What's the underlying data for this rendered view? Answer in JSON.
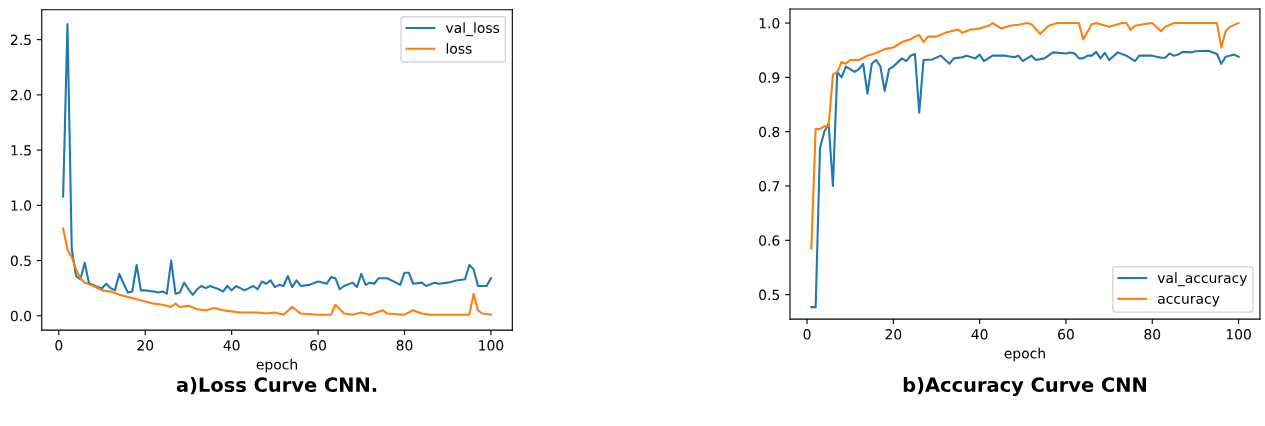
{
  "chart_data": [
    {
      "type": "line",
      "xlabel": "epoch",
      "xlim": [
        -3.95,
        104.95
      ],
      "ylim": [
        -0.13,
        2.77
      ],
      "xticks": [
        0,
        20,
        40,
        60,
        80,
        100
      ],
      "yticks": [
        {
          "value": 0,
          "label": "0.0"
        },
        0.5,
        {
          "value": 1,
          "label": "1.0"
        },
        1.5,
        {
          "value": 2,
          "label": "2.0"
        },
        2.5
      ],
      "grid": false,
      "legend": "top right",
      "annotations": [
        "a)Loss Curve CNN."
      ],
      "series": [
        {
          "name": "val_loss",
          "color": "#1f77b4",
          "x": [
            1,
            2,
            3,
            4,
            5,
            6,
            7,
            8,
            9,
            10,
            11,
            12,
            13,
            14,
            15,
            16,
            17,
            18,
            19,
            20,
            22,
            23,
            24,
            25,
            26,
            27,
            28,
            29,
            30,
            31,
            32,
            33,
            34,
            35,
            37,
            38,
            39,
            40,
            41,
            42,
            43,
            44,
            45,
            46,
            47,
            48,
            49,
            50,
            51,
            52,
            53,
            54,
            55,
            56,
            58,
            60,
            62,
            63,
            64,
            65,
            66,
            68,
            69,
            70,
            71,
            72,
            73,
            74,
            76,
            78,
            79,
            80,
            81,
            82,
            84,
            85,
            87,
            88,
            90,
            92,
            94,
            95,
            96,
            97,
            99,
            100
          ],
          "values": [
            1.08,
            2.64,
            0.6,
            0.36,
            0.33,
            0.48,
            0.29,
            0.28,
            0.26,
            0.25,
            0.29,
            0.25,
            0.23,
            0.38,
            0.29,
            0.21,
            0.22,
            0.46,
            0.23,
            0.23,
            0.22,
            0.21,
            0.22,
            0.2,
            0.5,
            0.2,
            0.21,
            0.3,
            0.24,
            0.19,
            0.24,
            0.27,
            0.25,
            0.27,
            0.24,
            0.22,
            0.27,
            0.23,
            0.27,
            0.25,
            0.23,
            0.25,
            0.27,
            0.24,
            0.31,
            0.29,
            0.32,
            0.26,
            0.28,
            0.27,
            0.36,
            0.26,
            0.32,
            0.27,
            0.28,
            0.31,
            0.29,
            0.35,
            0.34,
            0.24,
            0.27,
            0.3,
            0.26,
            0.38,
            0.28,
            0.3,
            0.29,
            0.34,
            0.34,
            0.3,
            0.28,
            0.39,
            0.39,
            0.29,
            0.3,
            0.27,
            0.3,
            0.29,
            0.3,
            0.32,
            0.33,
            0.46,
            0.42,
            0.27,
            0.27,
            0.34
          ]
        },
        {
          "name": "loss",
          "color": "#ff7f0e",
          "x": [
            1,
            2,
            3,
            4,
            5,
            6,
            8,
            10,
            12,
            14,
            16,
            18,
            20,
            22,
            24,
            26,
            27,
            28,
            30,
            32,
            34,
            36,
            38,
            40,
            42,
            44,
            46,
            48,
            50,
            52,
            54,
            56,
            60,
            63,
            64,
            66,
            68,
            70,
            72,
            75,
            76,
            80,
            82,
            84,
            86,
            95,
            96,
            97,
            98,
            100
          ],
          "values": [
            0.79,
            0.6,
            0.53,
            0.42,
            0.34,
            0.3,
            0.27,
            0.23,
            0.22,
            0.19,
            0.17,
            0.15,
            0.13,
            0.11,
            0.1,
            0.08,
            0.11,
            0.08,
            0.09,
            0.06,
            0.05,
            0.07,
            0.05,
            0.04,
            0.03,
            0.03,
            0.03,
            0.02,
            0.03,
            0.01,
            0.08,
            0.02,
            0.01,
            0.01,
            0.1,
            0.02,
            0.01,
            0.03,
            0.01,
            0.05,
            0.02,
            0.01,
            0.05,
            0.02,
            0.01,
            0.01,
            0.2,
            0.05,
            0.02,
            0.01
          ]
        }
      ]
    },
    {
      "type": "line",
      "xlabel": "epoch",
      "xlim": [
        -3.95,
        104.95
      ],
      "ylim": [
        0.455,
        1.026
      ],
      "xticks": [
        0,
        20,
        40,
        60,
        80,
        100
      ],
      "yticks": [
        0.5,
        0.6,
        0.7,
        0.8,
        0.9,
        {
          "value": 1,
          "label": "1.0"
        }
      ],
      "grid": false,
      "legend": "bottom right",
      "annotations": [
        "b)Accuracy Curve CNN"
      ],
      "series": [
        {
          "name": "val_accuracy",
          "color": "#1f77b4",
          "x": [
            1,
            2,
            3,
            4,
            5,
            6,
            7,
            8,
            9,
            10,
            11,
            12,
            13,
            14,
            15,
            16,
            17,
            18,
            19,
            20,
            22,
            23,
            24,
            25,
            26,
            27,
            29,
            31,
            33,
            34,
            36,
            37,
            39,
            40,
            41,
            43,
            46,
            48,
            49,
            50,
            52,
            53,
            55,
            57,
            60,
            61,
            62,
            63,
            64,
            65,
            66,
            67,
            68,
            69,
            70,
            72,
            74,
            76,
            77,
            80,
            82,
            83,
            84,
            85,
            86,
            87,
            89,
            90,
            93,
            95,
            96,
            97,
            99,
            100
          ],
          "values": [
            0.477,
            0.477,
            0.77,
            0.8,
            0.815,
            0.7,
            0.91,
            0.9,
            0.92,
            0.915,
            0.91,
            0.915,
            0.925,
            0.87,
            0.925,
            0.932,
            0.92,
            0.875,
            0.915,
            0.92,
            0.935,
            0.93,
            0.94,
            0.943,
            0.835,
            0.932,
            0.933,
            0.94,
            0.925,
            0.935,
            0.937,
            0.94,
            0.935,
            0.942,
            0.93,
            0.94,
            0.94,
            0.937,
            0.94,
            0.93,
            0.94,
            0.932,
            0.935,
            0.946,
            0.944,
            0.946,
            0.944,
            0.935,
            0.935,
            0.94,
            0.94,
            0.947,
            0.935,
            0.945,
            0.932,
            0.946,
            0.94,
            0.93,
            0.94,
            0.94,
            0.936,
            0.936,
            0.944,
            0.94,
            0.942,
            0.947,
            0.946,
            0.948,
            0.949,
            0.943,
            0.925,
            0.938,
            0.942,
            0.938
          ]
        },
        {
          "name": "accuracy",
          "color": "#ff7f0e",
          "x": [
            1,
            2,
            3,
            4,
            5,
            6,
            7,
            8,
            9,
            10,
            12,
            14,
            16,
            18,
            20,
            22,
            24,
            25,
            26,
            27,
            28,
            30,
            32,
            35,
            36,
            38,
            40,
            42,
            43,
            45,
            47,
            49,
            51,
            52,
            54,
            56,
            58,
            63,
            64,
            66,
            67,
            70,
            73,
            74,
            75,
            76,
            78,
            80,
            82,
            83,
            85,
            95,
            96,
            97,
            98,
            100
          ],
          "values": [
            0.585,
            0.805,
            0.805,
            0.81,
            0.81,
            0.905,
            0.91,
            0.928,
            0.925,
            0.932,
            0.932,
            0.94,
            0.945,
            0.952,
            0.955,
            0.965,
            0.97,
            0.975,
            0.978,
            0.965,
            0.975,
            0.975,
            0.982,
            0.988,
            0.982,
            0.988,
            0.99,
            0.995,
            1.0,
            0.99,
            0.995,
            0.997,
            1.0,
            0.998,
            0.98,
            0.995,
            1.0,
            1.0,
            0.97,
            0.998,
            1.0,
            0.993,
            1.0,
            1.0,
            0.987,
            0.995,
            0.998,
            1.0,
            0.985,
            0.993,
            1.0,
            1.0,
            0.955,
            0.985,
            0.993,
            1.0
          ]
        }
      ]
    }
  ]
}
